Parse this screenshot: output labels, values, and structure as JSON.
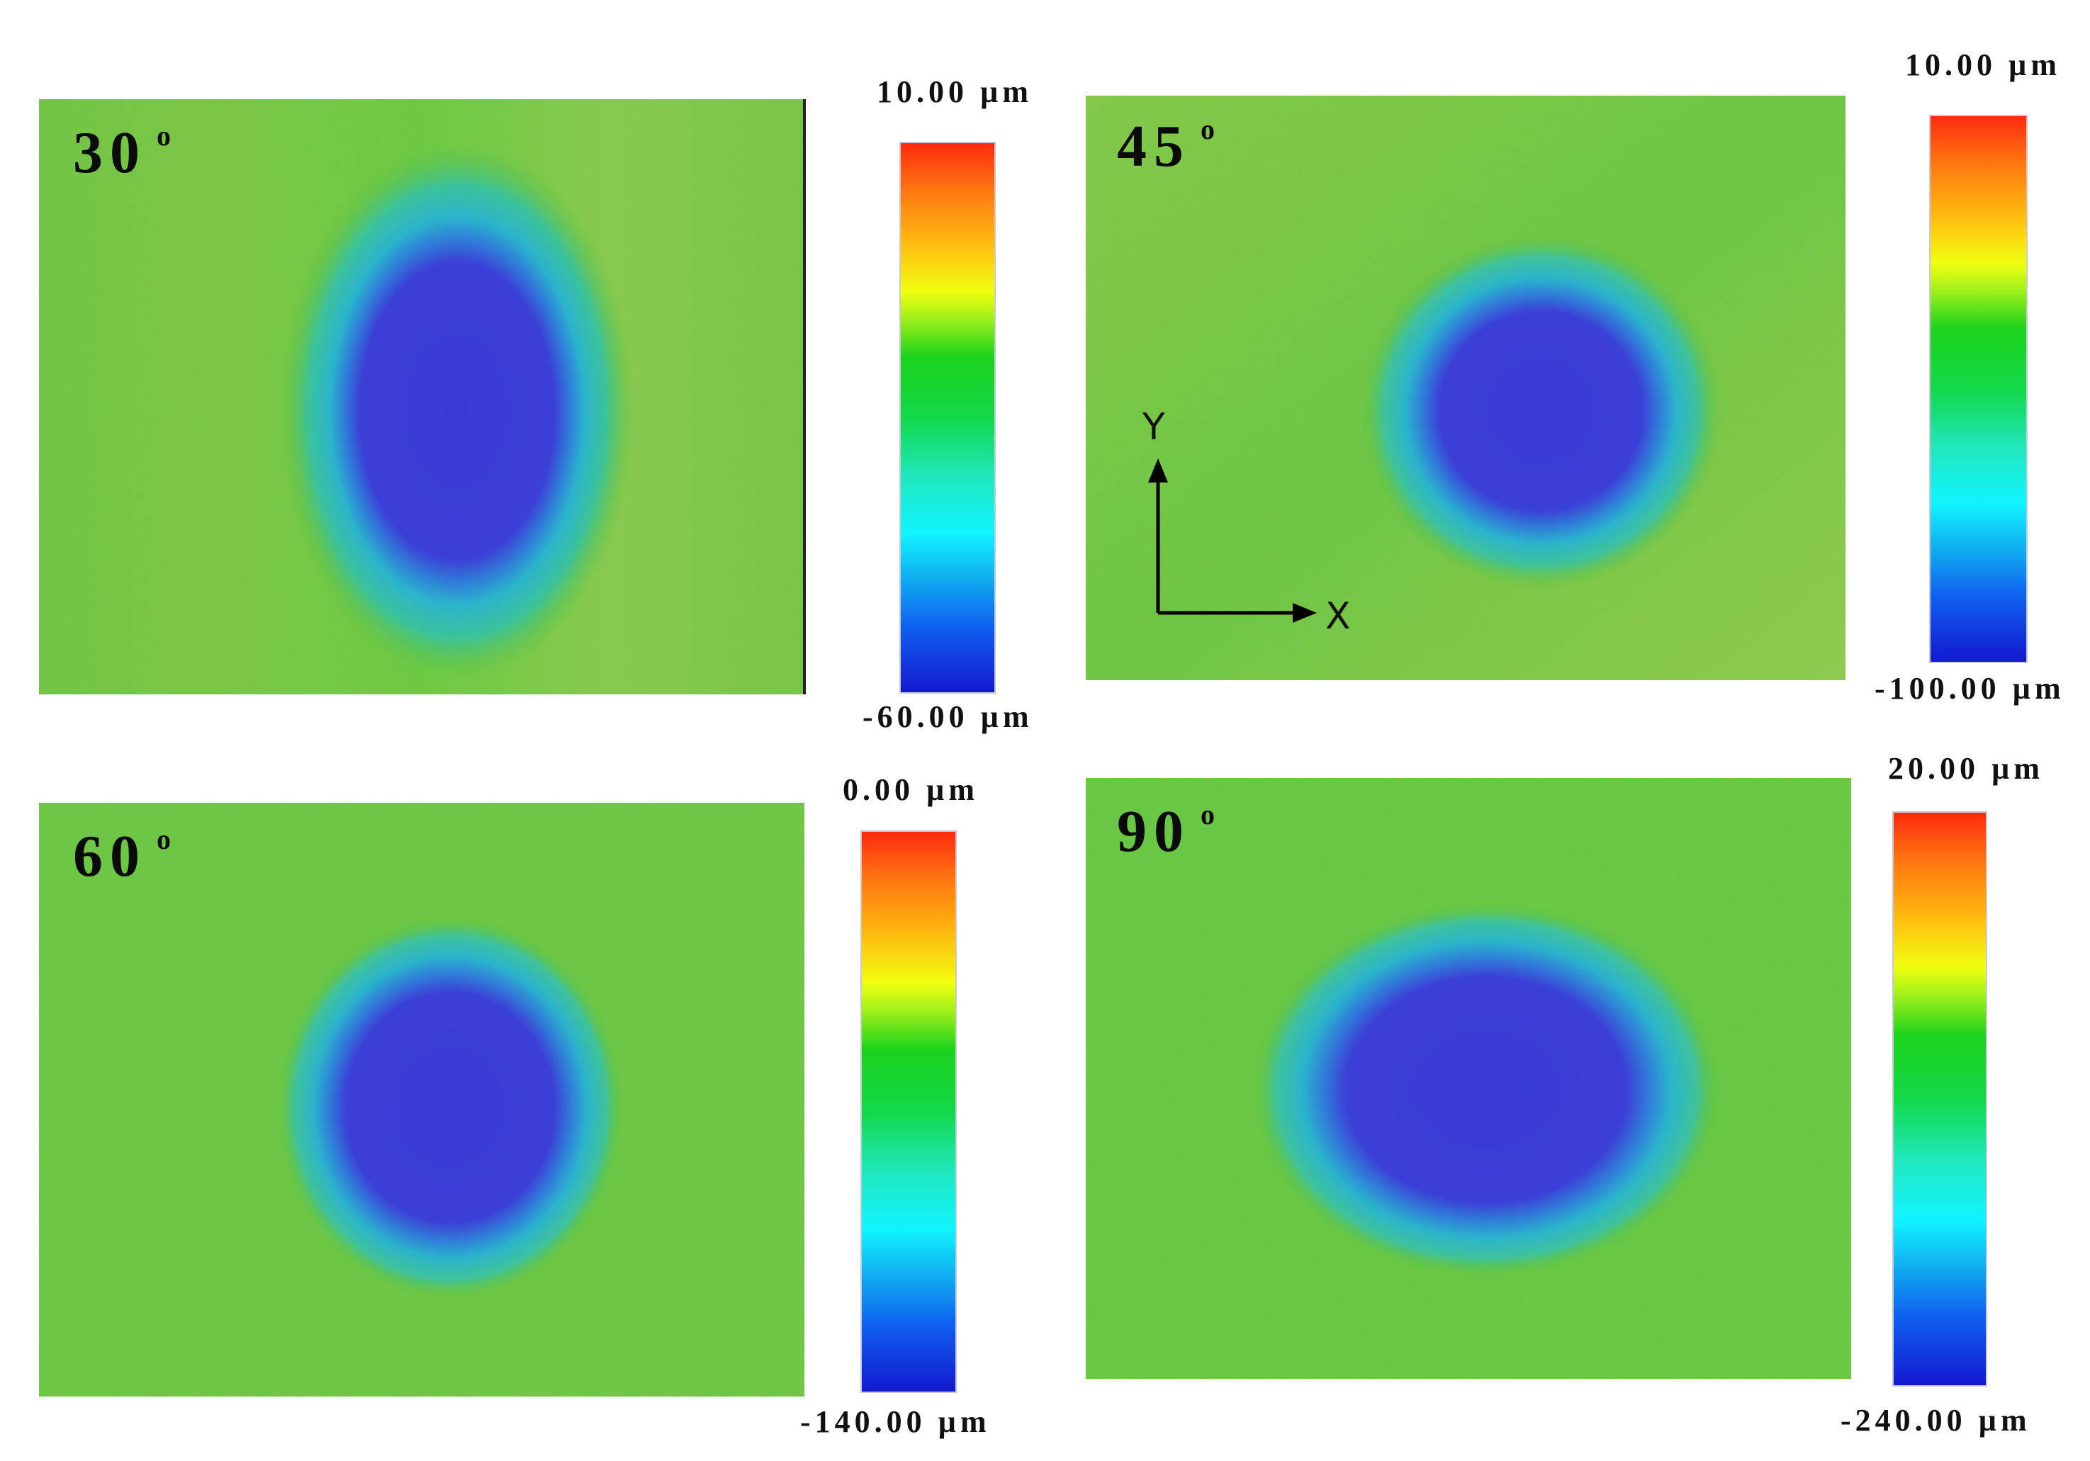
{
  "panels": [
    {
      "id": "p30",
      "label": "30",
      "degree_mark": "o",
      "scale_max": "10.00 µm",
      "scale_min": "-60.00 µm"
    },
    {
      "id": "p45",
      "label": "45",
      "degree_mark": "o",
      "scale_max": "10.00 µm",
      "scale_min": "-100.00 µm",
      "axes": {
        "x_label": "X",
        "y_label": "Y"
      }
    },
    {
      "id": "p60",
      "label": "60",
      "degree_mark": "o",
      "scale_max": "0.00 µm",
      "scale_min": "-140.00 µm"
    },
    {
      "id": "p90",
      "label": "90",
      "degree_mark": "o",
      "scale_max": "20.00 µm",
      "scale_min": "-240.00 µm"
    }
  ],
  "colors": {
    "surface_green": "#5cc23a",
    "crater_blue": "#3b3bd6",
    "rim_cyan": "#2fb6d0"
  }
}
